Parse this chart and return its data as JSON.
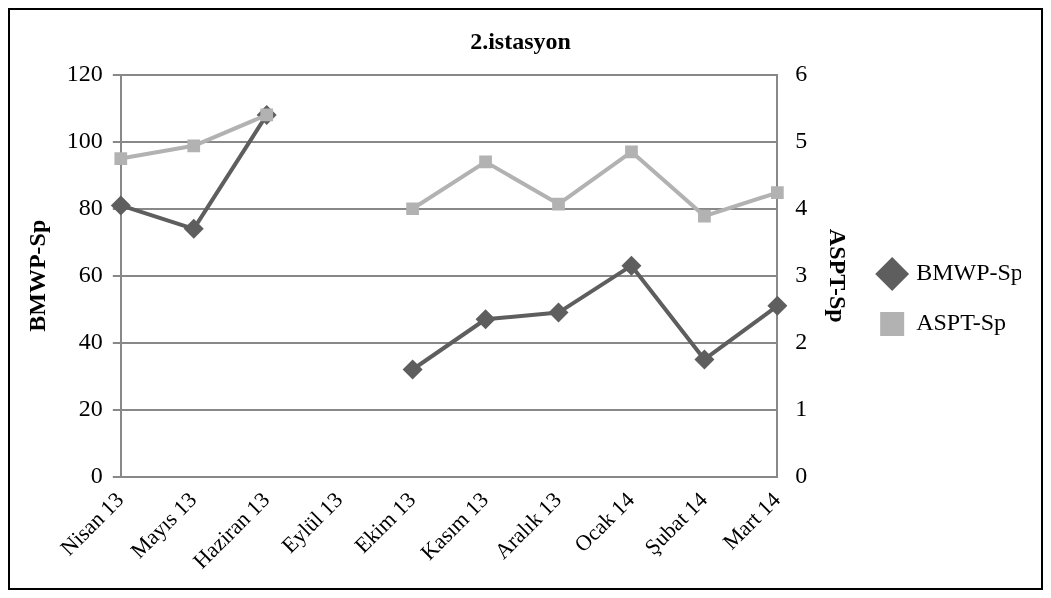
{
  "chart_data": {
    "type": "line",
    "title": "2.istasyon",
    "ylabel": "BMWP-Sp",
    "y2label": "ASPT-Sp",
    "categories": [
      "Nisan 13",
      "Mayıs 13",
      "Haziran 13",
      "Eylül 13",
      "Ekim 13",
      "Kasım 13",
      "Aralık 13",
      "Ocak 14",
      "Şubat 14",
      "Mart 14"
    ],
    "series": [
      {
        "name": "BMWP-Sp",
        "color": "#5e5e5e",
        "marker": "diamond",
        "values": [
          81,
          74,
          108,
          null,
          32,
          47,
          49,
          63,
          35,
          51
        ]
      },
      {
        "name": "ASPT-Sp",
        "color": "#b2b2b2",
        "marker": "square",
        "axis": "y2",
        "values": [
          4.75,
          4.94,
          5.4,
          null,
          4.0,
          4.7,
          4.07,
          4.85,
          3.89,
          4.24
        ]
      }
    ],
    "ylim": [
      0,
      120
    ],
    "yticks": [
      0,
      20,
      40,
      60,
      80,
      100,
      120
    ],
    "y2lim": [
      0,
      6
    ],
    "y2ticks": [
      0,
      1,
      2,
      3,
      4,
      5,
      6
    ],
    "grid": "y",
    "legend": "right",
    "line_style": "solid"
  }
}
